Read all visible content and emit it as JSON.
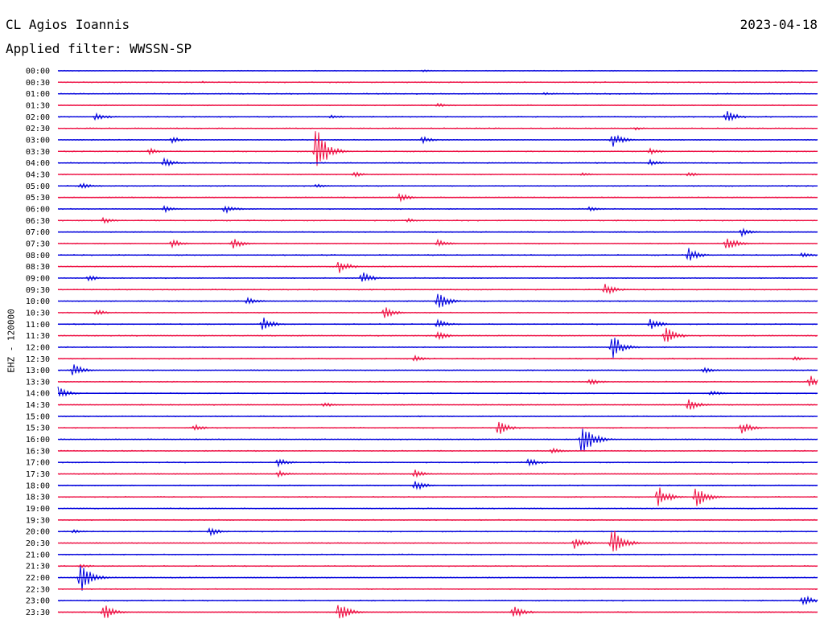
{
  "header": {
    "station": "CL Agios Ioannis",
    "date": "2023-04-18",
    "filter": "Applied filter: WWSSN-SP"
  },
  "colors": {
    "blue": "#0000dd",
    "red": "#ee1144"
  },
  "chart_data": {
    "type": "line",
    "title": "CL Agios Ioannis",
    "subtitle": "Applied filter: WWSSN-SP",
    "ylabel": "EHZ - 120000",
    "grid": false,
    "legend": "none",
    "series_colors": [
      "blue",
      "red"
    ],
    "x_span_minutes": 30,
    "rows": [
      {
        "label": "00:00",
        "events": [
          [
            0.48,
            0.3
          ]
        ]
      },
      {
        "label": "00:30",
        "events": [
          [
            0.19,
            0.2
          ]
        ]
      },
      {
        "label": "01:00",
        "events": [
          [
            0.64,
            0.3
          ]
        ]
      },
      {
        "label": "01:30",
        "events": [
          [
            0.5,
            0.4
          ]
        ]
      },
      {
        "label": "02:00",
        "events": [
          [
            0.05,
            0.8
          ],
          [
            0.36,
            0.4
          ],
          [
            0.88,
            1.3
          ]
        ]
      },
      {
        "label": "02:30",
        "events": [
          [
            0.76,
            0.3
          ]
        ]
      },
      {
        "label": "03:00",
        "events": [
          [
            0.15,
            0.6
          ],
          [
            0.48,
            0.6
          ],
          [
            0.73,
            1.3
          ]
        ]
      },
      {
        "label": "03:30",
        "events": [
          [
            0.12,
            0.6
          ],
          [
            0.34,
            4.8
          ],
          [
            0.78,
            0.6
          ]
        ]
      },
      {
        "label": "04:00",
        "events": [
          [
            0.14,
            0.8
          ],
          [
            0.78,
            0.6
          ]
        ]
      },
      {
        "label": "04:30",
        "events": [
          [
            0.39,
            0.5
          ],
          [
            0.69,
            0.4
          ],
          [
            0.83,
            0.5
          ]
        ]
      },
      {
        "label": "05:00",
        "events": [
          [
            0.03,
            0.6
          ],
          [
            0.34,
            0.4
          ]
        ]
      },
      {
        "label": "05:30",
        "events": [
          [
            0.45,
            0.8
          ]
        ]
      },
      {
        "label": "06:00",
        "events": [
          [
            0.14,
            0.6
          ],
          [
            0.22,
            0.8
          ],
          [
            0.7,
            0.5
          ]
        ]
      },
      {
        "label": "06:30",
        "events": [
          [
            0.06,
            0.6
          ],
          [
            0.46,
            0.4
          ]
        ]
      },
      {
        "label": "07:00",
        "events": [
          [
            0.9,
            0.8
          ]
        ]
      },
      {
        "label": "07:30",
        "events": [
          [
            0.15,
            0.8
          ],
          [
            0.23,
            1.0
          ],
          [
            0.5,
            0.8
          ],
          [
            0.88,
            1.4
          ]
        ]
      },
      {
        "label": "08:00",
        "events": [
          [
            0.83,
            1.3
          ],
          [
            0.98,
            0.6
          ]
        ]
      },
      {
        "label": "08:30",
        "events": [
          [
            0.37,
            1.2
          ]
        ]
      },
      {
        "label": "09:00",
        "events": [
          [
            0.04,
            0.6
          ],
          [
            0.4,
            1.2
          ]
        ]
      },
      {
        "label": "09:30",
        "events": [
          [
            0.72,
            1.2
          ]
        ]
      },
      {
        "label": "10:00",
        "events": [
          [
            0.25,
            0.8
          ],
          [
            0.5,
            1.7
          ]
        ]
      },
      {
        "label": "10:30",
        "events": [
          [
            0.05,
            0.6
          ],
          [
            0.43,
            1.1
          ]
        ]
      },
      {
        "label": "11:00",
        "events": [
          [
            0.27,
            1.3
          ],
          [
            0.5,
            0.8
          ],
          [
            0.78,
            1.1
          ]
        ]
      },
      {
        "label": "11:30",
        "events": [
          [
            0.5,
            0.8
          ],
          [
            0.8,
            1.8
          ]
        ]
      },
      {
        "label": "12:00",
        "events": [
          [
            0.73,
            2.4
          ]
        ]
      },
      {
        "label": "12:30",
        "events": [
          [
            0.47,
            0.6
          ],
          [
            0.97,
            0.5
          ]
        ]
      },
      {
        "label": "13:00",
        "events": [
          [
            0.02,
            1.2
          ],
          [
            0.85,
            0.6
          ]
        ]
      },
      {
        "label": "13:30",
        "events": [
          [
            0.7,
            0.7
          ],
          [
            0.99,
            1.2
          ]
        ]
      },
      {
        "label": "14:00",
        "events": [
          [
            0.0,
            1.2
          ],
          [
            0.86,
            0.5
          ]
        ]
      },
      {
        "label": "14:30",
        "events": [
          [
            0.35,
            0.5
          ],
          [
            0.83,
            1.2
          ]
        ]
      },
      {
        "label": "15:00",
        "events": []
      },
      {
        "label": "15:30",
        "events": [
          [
            0.18,
            0.6
          ],
          [
            0.58,
            1.4
          ],
          [
            0.9,
            1.2
          ]
        ]
      },
      {
        "label": "16:00",
        "events": [
          [
            0.69,
            3.9
          ]
        ]
      },
      {
        "label": "16:30",
        "events": [
          [
            0.65,
            0.6
          ]
        ]
      },
      {
        "label": "17:00",
        "events": [
          [
            0.29,
            0.8
          ],
          [
            0.62,
            0.8
          ]
        ]
      },
      {
        "label": "17:30",
        "events": [
          [
            0.29,
            0.6
          ],
          [
            0.47,
            0.8
          ]
        ]
      },
      {
        "label": "18:00",
        "events": [
          [
            0.47,
            1.0
          ]
        ]
      },
      {
        "label": "18:30",
        "events": [
          [
            0.79,
            2.0
          ],
          [
            0.84,
            2.4
          ]
        ]
      },
      {
        "label": "19:00",
        "events": []
      },
      {
        "label": "19:30",
        "events": []
      },
      {
        "label": "20:00",
        "events": [
          [
            0.02,
            0.4
          ],
          [
            0.2,
            0.8
          ]
        ]
      },
      {
        "label": "20:30",
        "events": [
          [
            0.68,
            1.0
          ],
          [
            0.73,
            3.1
          ]
        ]
      },
      {
        "label": "21:00",
        "events": []
      },
      {
        "label": "21:30",
        "events": [
          [
            0.03,
            0.4
          ]
        ]
      },
      {
        "label": "22:00",
        "events": [
          [
            0.03,
            3.0
          ]
        ]
      },
      {
        "label": "22:30",
        "events": []
      },
      {
        "label": "23:00",
        "events": [
          [
            0.98,
            1.2
          ]
        ]
      },
      {
        "label": "23:30",
        "events": [
          [
            0.06,
            1.6
          ],
          [
            0.37,
            1.9
          ],
          [
            0.6,
            1.3
          ]
        ]
      }
    ]
  }
}
